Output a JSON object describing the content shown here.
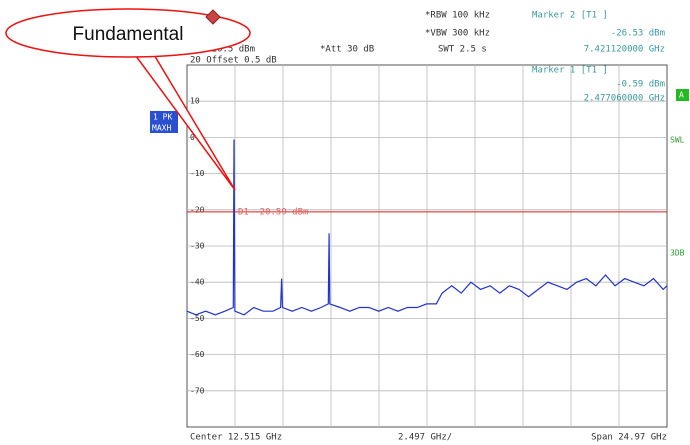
{
  "chart_data": {
    "type": "line",
    "callout": "Fundamental",
    "ref_level": "Ref 20.5 dBm",
    "offset": "20 Offset 0.5 dB",
    "attenuation": "*Att 30 dB",
    "rbw": "*RBW 100 kHz",
    "vbw": "*VBW 300 kHz",
    "sweep_time": "SWT 2.5 s",
    "markers": [
      {
        "label": "Marker 2 [T1 ]",
        "level": "-26.53 dBm",
        "freq": "7.421120000 GHz"
      },
      {
        "label": "Marker 1 [T1 ]",
        "level": "-0.59 dBm",
        "freq": "2.477060000 GHz"
      }
    ],
    "display_line": {
      "value": -20.59,
      "label": "D1 -20.59 dBm"
    },
    "trace_label": "1 PK",
    "detector_mode": "MAXH",
    "side_tag": "A",
    "right_labels": [
      "SWL",
      "3DB"
    ],
    "center": "Center 12.515 GHz",
    "per_div": "2.497 GHz/",
    "span": "Span 24.97 GHz",
    "color": "#2233cc",
    "x": [
      0.03,
      0.5,
      1.0,
      1.5,
      2.0,
      2.44,
      2.477,
      2.52,
      3.0,
      3.5,
      4.0,
      4.5,
      4.9,
      4.95,
      5.0,
      5.5,
      6.0,
      6.5,
      7.0,
      7.38,
      7.421,
      7.46,
      8.0,
      8.5,
      9.0,
      9.5,
      10.0,
      10.5,
      11.0,
      11.5,
      12.0,
      12.5,
      13.0,
      13.3,
      13.8,
      14.3,
      14.8,
      15.3,
      15.8,
      16.3,
      16.8,
      17.3,
      17.8,
      18.3,
      18.8,
      19.3,
      19.8,
      20.3,
      20.8,
      21.3,
      21.8,
      22.3,
      22.8,
      23.3,
      23.8,
      24.3,
      24.8,
      25.0
    ],
    "values": [
      -48,
      -49,
      -48,
      -49,
      -48,
      -47,
      -0.59,
      -48,
      -49,
      -47,
      -48,
      -48,
      -47,
      -39,
      -47,
      -48,
      -47,
      -48,
      -47,
      -46,
      -26.53,
      -46,
      -47,
      -48,
      -47,
      -47,
      -48,
      -47,
      -48,
      -47,
      -47,
      -46,
      -46,
      -43,
      -41,
      -43,
      -40,
      -42,
      -41,
      -43,
      -41,
      -42,
      -44,
      -42,
      -40,
      -41,
      -42,
      -40,
      -39,
      -41,
      -38,
      -41,
      -39,
      -40,
      -41,
      -39,
      -42,
      -41
    ],
    "xlim": [
      0.03,
      25.0
    ],
    "ylim": [
      -80,
      20
    ],
    "yticks": [
      -70,
      -60,
      -50,
      -40,
      -30,
      -20,
      -10,
      0,
      10
    ],
    "grid": true
  }
}
